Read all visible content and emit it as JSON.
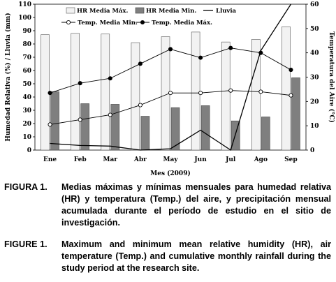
{
  "chart_data": {
    "type": "bar+line",
    "categories": [
      "Ene",
      "Feb",
      "Mar",
      "Abr",
      "May",
      "Jun",
      "Jul",
      "Ago",
      "Sep"
    ],
    "xlabel": "Mes (2009)",
    "ylabel_left": "Humedad Relativa (%) / Lluvia (mm)",
    "ylabel_right": "Temperatura del Aire (°C)",
    "ylim_left": [
      0,
      110
    ],
    "ylim_right": [
      0,
      60
    ],
    "yticks_left": [
      "0",
      "10",
      "20",
      "30",
      "40",
      "50",
      "60",
      "70",
      "80",
      "90",
      "100",
      "110"
    ],
    "yticks_right": [
      "0",
      "10",
      "20",
      "30",
      "40",
      "50",
      "60"
    ],
    "series": [
      {
        "name": "HR Media Máx.",
        "type": "bar",
        "axis": "left",
        "color": "#f2f2f2",
        "values": [
          87,
          88,
          87.5,
          81,
          85.5,
          89,
          81.5,
          83.5,
          93
        ]
      },
      {
        "name": "HR Media Min.",
        "type": "bar",
        "axis": "left",
        "color": "#7f7f7f",
        "values": [
          44,
          35,
          34.5,
          25.5,
          32,
          33.5,
          22,
          25,
          54.5
        ]
      },
      {
        "name": "Lluvia",
        "type": "line",
        "axis": "left",
        "color": "#000000",
        "values": [
          5,
          3.5,
          3,
          0,
          1,
          15,
          0,
          75,
          110
        ]
      },
      {
        "name": "Temp. Media Min.",
        "type": "line",
        "axis": "right",
        "marker": "open",
        "color": "#000000",
        "values": [
          10.5,
          12.5,
          14.5,
          18.5,
          23.5,
          23.5,
          24.5,
          24,
          22.5
        ]
      },
      {
        "name": "Temp. Media Máx.",
        "type": "line",
        "axis": "right",
        "marker": "filled",
        "color": "#000000",
        "values": [
          23.5,
          27.5,
          29.5,
          35.5,
          41.5,
          38,
          42,
          40,
          33
        ]
      }
    ],
    "legend_position": "top"
  },
  "captions": {
    "es_label": "FIGURA 1.",
    "es_text": "Medias máximas y mínimas mensuales para humedad relativa (HR) y temperatura (Temp.) del aire, y precipitación mensual acumulada durante el período de estudio en el sitio de investigación.",
    "en_label": "FIGURE 1.",
    "en_text": "Maximum and minimum mean relative humidity (HR), air temperature (Temp.) and cumulative monthly rainfall during the study period at the research site."
  }
}
